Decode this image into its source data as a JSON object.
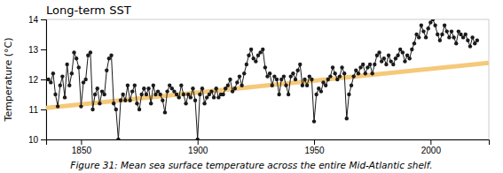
{
  "chart_data": {
    "type": "line",
    "title": "Long-term SST",
    "ylabel": "Temperature (°C)",
    "caption": "Figure 31:  Mean sea surface temperature across the entire Mid-Atlantic shelf.",
    "xlim": [
      1835,
      2025
    ],
    "xticks": [
      1850,
      1900,
      1950,
      2000
    ],
    "ylim": [
      10,
      14
    ],
    "yticks": [
      10,
      11,
      12,
      13,
      14
    ],
    "x": [
      1836,
      1837,
      1838,
      1839,
      1840,
      1841,
      1842,
      1843,
      1844,
      1845,
      1846,
      1847,
      1848,
      1849,
      1850,
      1851,
      1852,
      1853,
      1854,
      1855,
      1856,
      1857,
      1858,
      1859,
      1860,
      1861,
      1862,
      1863,
      1864,
      1865,
      1866,
      1867,
      1868,
      1869,
      1870,
      1871,
      1872,
      1873,
      1874,
      1875,
      1876,
      1877,
      1878,
      1879,
      1880,
      1881,
      1882,
      1883,
      1884,
      1885,
      1886,
      1887,
      1888,
      1889,
      1890,
      1891,
      1892,
      1893,
      1894,
      1895,
      1896,
      1897,
      1898,
      1899,
      1900,
      1901,
      1902,
      1903,
      1904,
      1905,
      1906,
      1907,
      1908,
      1909,
      1910,
      1911,
      1912,
      1913,
      1914,
      1915,
      1916,
      1917,
      1918,
      1919,
      1920,
      1921,
      1922,
      1923,
      1924,
      1925,
      1926,
      1927,
      1928,
      1929,
      1930,
      1931,
      1932,
      1933,
      1934,
      1935,
      1936,
      1937,
      1938,
      1939,
      1940,
      1941,
      1942,
      1943,
      1944,
      1945,
      1946,
      1947,
      1948,
      1949,
      1950,
      1951,
      1952,
      1953,
      1954,
      1955,
      1956,
      1957,
      1958,
      1959,
      1960,
      1961,
      1962,
      1963,
      1964,
      1965,
      1966,
      1967,
      1968,
      1969,
      1970,
      1971,
      1972,
      1973,
      1974,
      1975,
      1976,
      1977,
      1978,
      1979,
      1980,
      1981,
      1982,
      1983,
      1984,
      1985,
      1986,
      1987,
      1988,
      1989,
      1990,
      1991,
      1992,
      1993,
      1994,
      1995,
      1996,
      1997,
      1998,
      1999,
      2000,
      2001,
      2002,
      2003,
      2004,
      2005,
      2006,
      2007,
      2008,
      2009,
      2010,
      2011,
      2012,
      2013,
      2014,
      2015,
      2016,
      2017,
      2018,
      2019,
      2020
    ],
    "series": [
      {
        "color": "#1a1a1a",
        "marker": "circle",
        "line_style": "solid",
        "values": [
          12.0,
          11.9,
          12.2,
          11.5,
          11.1,
          11.8,
          12.1,
          11.4,
          12.5,
          11.8,
          12.2,
          12.9,
          12.7,
          12.4,
          11.1,
          11.9,
          12.0,
          12.8,
          12.9,
          11.0,
          11.5,
          11.7,
          11.2,
          11.6,
          11.5,
          12.3,
          12.7,
          12.8,
          11.2,
          11.0,
          10.0,
          11.3,
          11.5,
          11.3,
          11.8,
          11.3,
          11.6,
          11.8,
          11.2,
          11.0,
          11.5,
          11.7,
          11.5,
          11.7,
          11.2,
          11.8,
          11.5,
          11.6,
          11.5,
          11.3,
          10.9,
          11.6,
          11.8,
          11.7,
          11.6,
          11.5,
          11.4,
          11.8,
          11.5,
          11.2,
          11.5,
          11.4,
          11.7,
          11.3,
          10.0,
          11.5,
          11.7,
          11.2,
          11.4,
          11.5,
          11.6,
          11.4,
          11.7,
          11.4,
          11.5,
          11.5,
          11.7,
          11.8,
          12.0,
          11.6,
          11.7,
          11.9,
          12.1,
          11.8,
          12.2,
          12.5,
          12.8,
          13.0,
          12.7,
          12.6,
          12.8,
          12.9,
          13.0,
          12.4,
          12.1,
          12.2,
          11.8,
          12.1,
          12.0,
          11.5,
          12.0,
          12.1,
          11.8,
          11.5,
          12.1,
          12.2,
          12.0,
          12.3,
          12.5,
          11.8,
          12.0,
          11.8,
          12.1,
          12.0,
          10.6,
          11.5,
          11.7,
          11.6,
          11.9,
          11.8,
          12.0,
          12.1,
          12.4,
          12.2,
          12.0,
          12.1,
          12.4,
          12.2,
          10.7,
          11.5,
          11.8,
          12.1,
          12.3,
          12.2,
          12.4,
          12.5,
          12.2,
          12.4,
          12.5,
          12.2,
          12.5,
          12.8,
          12.9,
          12.6,
          12.7,
          12.5,
          12.8,
          12.6,
          12.5,
          12.7,
          12.8,
          13.0,
          12.9,
          12.6,
          12.8,
          12.7,
          13.0,
          13.2,
          13.5,
          13.4,
          13.8,
          13.6,
          13.4,
          13.7,
          13.9,
          14.0,
          13.8,
          13.5,
          13.3,
          13.5,
          13.8,
          13.6,
          13.4,
          13.6,
          13.4,
          13.2,
          13.6,
          13.5,
          13.4,
          13.5,
          13.3,
          13.1,
          13.4,
          13.2,
          13.3
        ]
      },
      {
        "color": "#F5C97A",
        "marker": "none",
        "line_style": "solid",
        "x": [
          1835,
          2025
        ],
        "values": [
          11.05,
          12.55
        ]
      }
    ]
  }
}
